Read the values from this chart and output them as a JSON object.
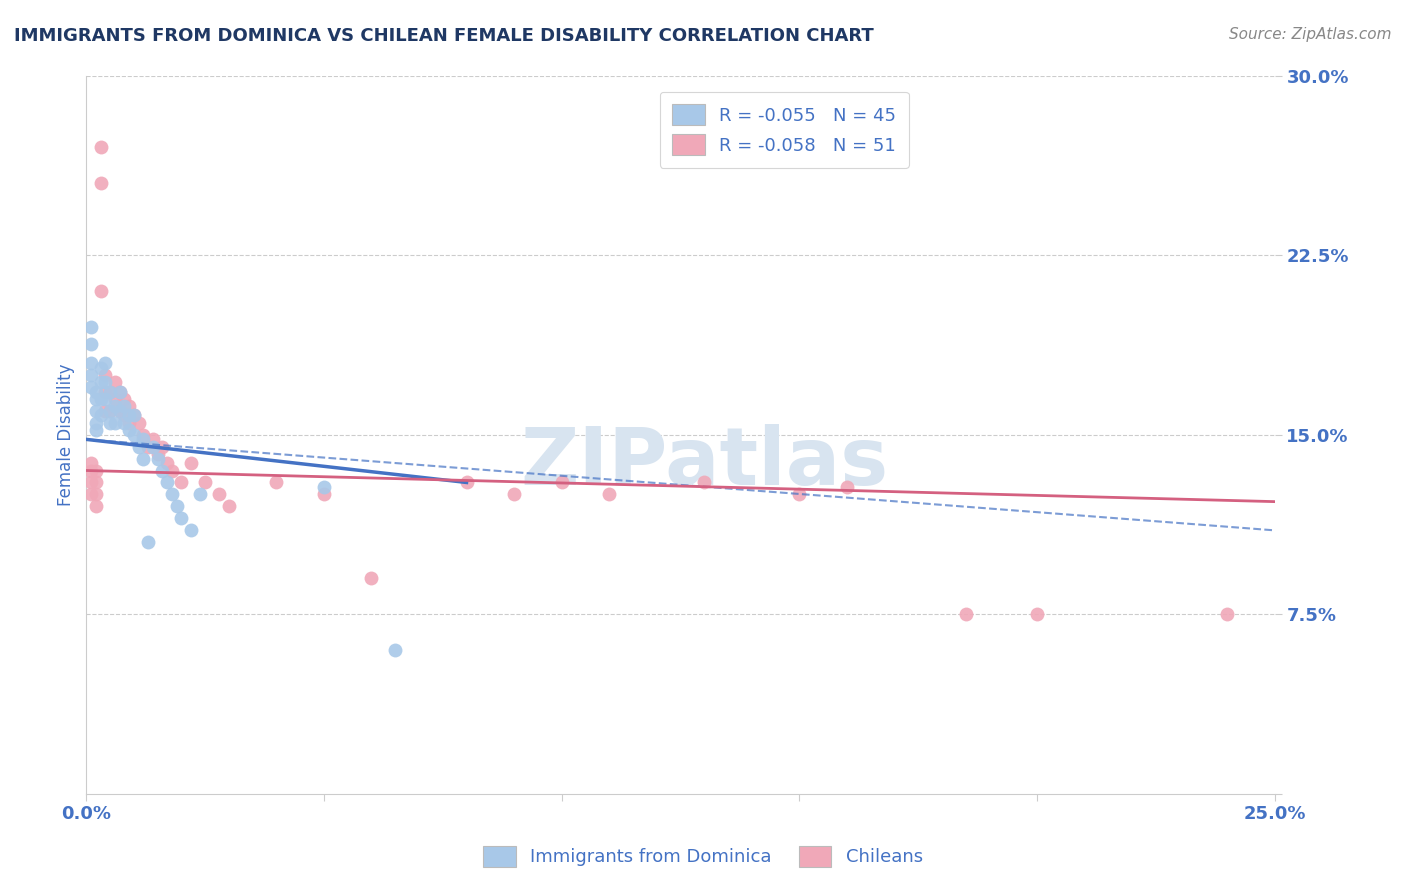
{
  "title": "IMMIGRANTS FROM DOMINICA VS CHILEAN FEMALE DISABILITY CORRELATION CHART",
  "source_text": "Source: ZipAtlas.com",
  "ylabel": "Female Disability",
  "xlim": [
    0.0,
    0.25
  ],
  "ylim": [
    0.0,
    0.3
  ],
  "yticks": [
    0.0,
    0.075,
    0.15,
    0.225,
    0.3
  ],
  "ytick_labels": [
    "",
    "7.5%",
    "15.0%",
    "22.5%",
    "30.0%"
  ],
  "xticks": [
    0.0,
    0.05,
    0.1,
    0.15,
    0.2,
    0.25
  ],
  "xtick_labels": [
    "0.0%",
    "",
    "",
    "",
    "",
    "25.0%"
  ],
  "blue_scatter_x": [
    0.001,
    0.001,
    0.001,
    0.001,
    0.001,
    0.002,
    0.002,
    0.002,
    0.002,
    0.002,
    0.003,
    0.003,
    0.003,
    0.003,
    0.004,
    0.004,
    0.004,
    0.005,
    0.005,
    0.005,
    0.006,
    0.006,
    0.007,
    0.007,
    0.008,
    0.008,
    0.009,
    0.009,
    0.01,
    0.01,
    0.011,
    0.012,
    0.012,
    0.013,
    0.014,
    0.015,
    0.016,
    0.017,
    0.018,
    0.019,
    0.02,
    0.022,
    0.024,
    0.05,
    0.065
  ],
  "blue_scatter_y": [
    0.195,
    0.188,
    0.18,
    0.175,
    0.17,
    0.168,
    0.165,
    0.16,
    0.155,
    0.152,
    0.178,
    0.172,
    0.165,
    0.158,
    0.18,
    0.172,
    0.165,
    0.168,
    0.16,
    0.155,
    0.162,
    0.155,
    0.168,
    0.16,
    0.162,
    0.155,
    0.158,
    0.152,
    0.158,
    0.15,
    0.145,
    0.148,
    0.14,
    0.105,
    0.145,
    0.14,
    0.135,
    0.13,
    0.125,
    0.12,
    0.115,
    0.11,
    0.125,
    0.128,
    0.06
  ],
  "pink_scatter_x": [
    0.001,
    0.001,
    0.001,
    0.001,
    0.002,
    0.002,
    0.002,
    0.002,
    0.003,
    0.003,
    0.003,
    0.004,
    0.004,
    0.004,
    0.005,
    0.005,
    0.006,
    0.006,
    0.007,
    0.007,
    0.008,
    0.008,
    0.009,
    0.009,
    0.01,
    0.011,
    0.012,
    0.013,
    0.014,
    0.015,
    0.016,
    0.017,
    0.018,
    0.02,
    0.022,
    0.025,
    0.028,
    0.03,
    0.04,
    0.05,
    0.06,
    0.08,
    0.09,
    0.1,
    0.11,
    0.13,
    0.15,
    0.16,
    0.185,
    0.2,
    0.24
  ],
  "pink_scatter_y": [
    0.138,
    0.135,
    0.13,
    0.125,
    0.135,
    0.13,
    0.125,
    0.12,
    0.27,
    0.255,
    0.21,
    0.175,
    0.168,
    0.16,
    0.168,
    0.16,
    0.172,
    0.165,
    0.168,
    0.16,
    0.165,
    0.158,
    0.162,
    0.155,
    0.158,
    0.155,
    0.15,
    0.145,
    0.148,
    0.142,
    0.145,
    0.138,
    0.135,
    0.13,
    0.138,
    0.13,
    0.125,
    0.12,
    0.13,
    0.125,
    0.09,
    0.13,
    0.125,
    0.13,
    0.125,
    0.13,
    0.125,
    0.128,
    0.075,
    0.075,
    0.075
  ],
  "blue_solid_line_x": [
    0.0,
    0.08
  ],
  "blue_solid_line_y": [
    0.148,
    0.13
  ],
  "blue_dash_line_x": [
    0.0,
    0.25
  ],
  "blue_dash_line_y": [
    0.148,
    0.11
  ],
  "pink_solid_line_x": [
    0.0,
    0.25
  ],
  "pink_solid_line_y": [
    0.135,
    0.122
  ],
  "blue_color": "#a8c8e8",
  "pink_color": "#f0a8b8",
  "blue_line_color": "#4472c4",
  "pink_line_color": "#d46080",
  "title_color": "#1f3864",
  "axis_label_color": "#4472c4",
  "tick_color": "#4472c4",
  "grid_color": "#cccccc",
  "watermark_text": "ZIPatlas",
  "watermark_color": "#d8e4f0",
  "legend_r1": "R = -0.055",
  "legend_n1": "N = 45",
  "legend_r2": "R = -0.058",
  "legend_n2": "N = 51",
  "legend_label1": "Immigrants from Dominica",
  "legend_label2": "Chileans"
}
